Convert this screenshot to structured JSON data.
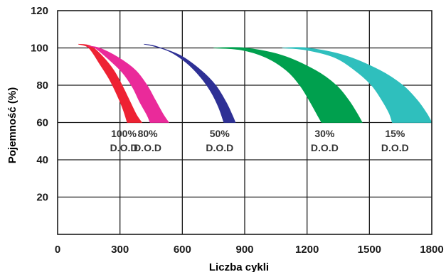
{
  "chart_data": {
    "type": "area",
    "title": "",
    "xlabel": "Liczba cykli",
    "ylabel": "Pojemność (%)",
    "xlim": [
      0,
      1800
    ],
    "ylim": [
      0,
      120
    ],
    "x_ticks": [
      0,
      300,
      600,
      900,
      1200,
      1500,
      1800
    ],
    "y_ticks": [
      20,
      40,
      60,
      80,
      100,
      120
    ],
    "grid": true,
    "legend": "none",
    "series": [
      {
        "label_line1": "100%",
        "label_line2": "D.O.D",
        "color": "#ee2233",
        "upper": [
          [
            100,
            102
          ],
          [
            160,
            101
          ],
          [
            220,
            95
          ],
          [
            270,
            88
          ],
          [
            310,
            80
          ],
          [
            345,
            72
          ],
          [
            380,
            64
          ],
          [
            405,
            60
          ]
        ],
        "lower": [
          [
            100,
            102
          ],
          [
            150,
            100
          ],
          [
            205,
            91
          ],
          [
            250,
            83
          ],
          [
            285,
            75
          ],
          [
            315,
            67
          ],
          [
            335,
            60
          ]
        ]
      },
      {
        "label_line1": "80%",
        "label_line2": "D.O.D",
        "color": "#ea2a9a",
        "upper": [
          [
            145,
            101
          ],
          [
            200,
            100
          ],
          [
            290,
            95
          ],
          [
            375,
            88
          ],
          [
            430,
            80
          ],
          [
            470,
            72
          ],
          [
            510,
            64
          ],
          [
            535,
            60
          ]
        ],
        "lower": [
          [
            145,
            101
          ],
          [
            180,
            100
          ],
          [
            245,
            94
          ],
          [
            310,
            87
          ],
          [
            360,
            79
          ],
          [
            395,
            71
          ],
          [
            430,
            64
          ],
          [
            445,
            60
          ]
        ]
      },
      {
        "label_line1": "50%",
        "label_line2": "D.O.D",
        "color": "#2e3095",
        "upper": [
          [
            415,
            102
          ],
          [
            470,
            101
          ],
          [
            590,
            96
          ],
          [
            690,
            88
          ],
          [
            760,
            80
          ],
          [
            810,
            71
          ],
          [
            840,
            64
          ],
          [
            855,
            60
          ]
        ],
        "lower": [
          [
            415,
            102
          ],
          [
            460,
            101
          ],
          [
            540,
            98
          ],
          [
            620,
            92
          ],
          [
            690,
            84
          ],
          [
            740,
            76
          ],
          [
            775,
            68
          ],
          [
            800,
            60
          ]
        ]
      },
      {
        "label_line1": "30%",
        "label_line2": "D.O.D",
        "color": "#00a04e",
        "upper": [
          [
            750,
            100
          ],
          [
            900,
            100
          ],
          [
            1080,
            96
          ],
          [
            1240,
            88
          ],
          [
            1340,
            80
          ],
          [
            1400,
            72
          ],
          [
            1440,
            65
          ],
          [
            1465,
            60
          ]
        ],
        "lower": [
          [
            750,
            100
          ],
          [
            880,
            99
          ],
          [
            1000,
            95
          ],
          [
            1100,
            88
          ],
          [
            1165,
            80
          ],
          [
            1210,
            72
          ],
          [
            1250,
            64
          ],
          [
            1270,
            60
          ]
        ]
      },
      {
        "label_line1": "15%",
        "label_line2": "D.O.D",
        "color": "#2fbfbd",
        "upper": [
          [
            1080,
            100
          ],
          [
            1200,
            100
          ],
          [
            1380,
            96
          ],
          [
            1550,
            88
          ],
          [
            1660,
            80
          ],
          [
            1730,
            72
          ],
          [
            1775,
            65
          ],
          [
            1800,
            60
          ]
        ],
        "lower": [
          [
            1080,
            100
          ],
          [
            1190,
            99
          ],
          [
            1330,
            95
          ],
          [
            1430,
            88
          ],
          [
            1510,
            80
          ],
          [
            1560,
            72
          ],
          [
            1595,
            65
          ],
          [
            1610,
            60
          ]
        ]
      }
    ]
  }
}
